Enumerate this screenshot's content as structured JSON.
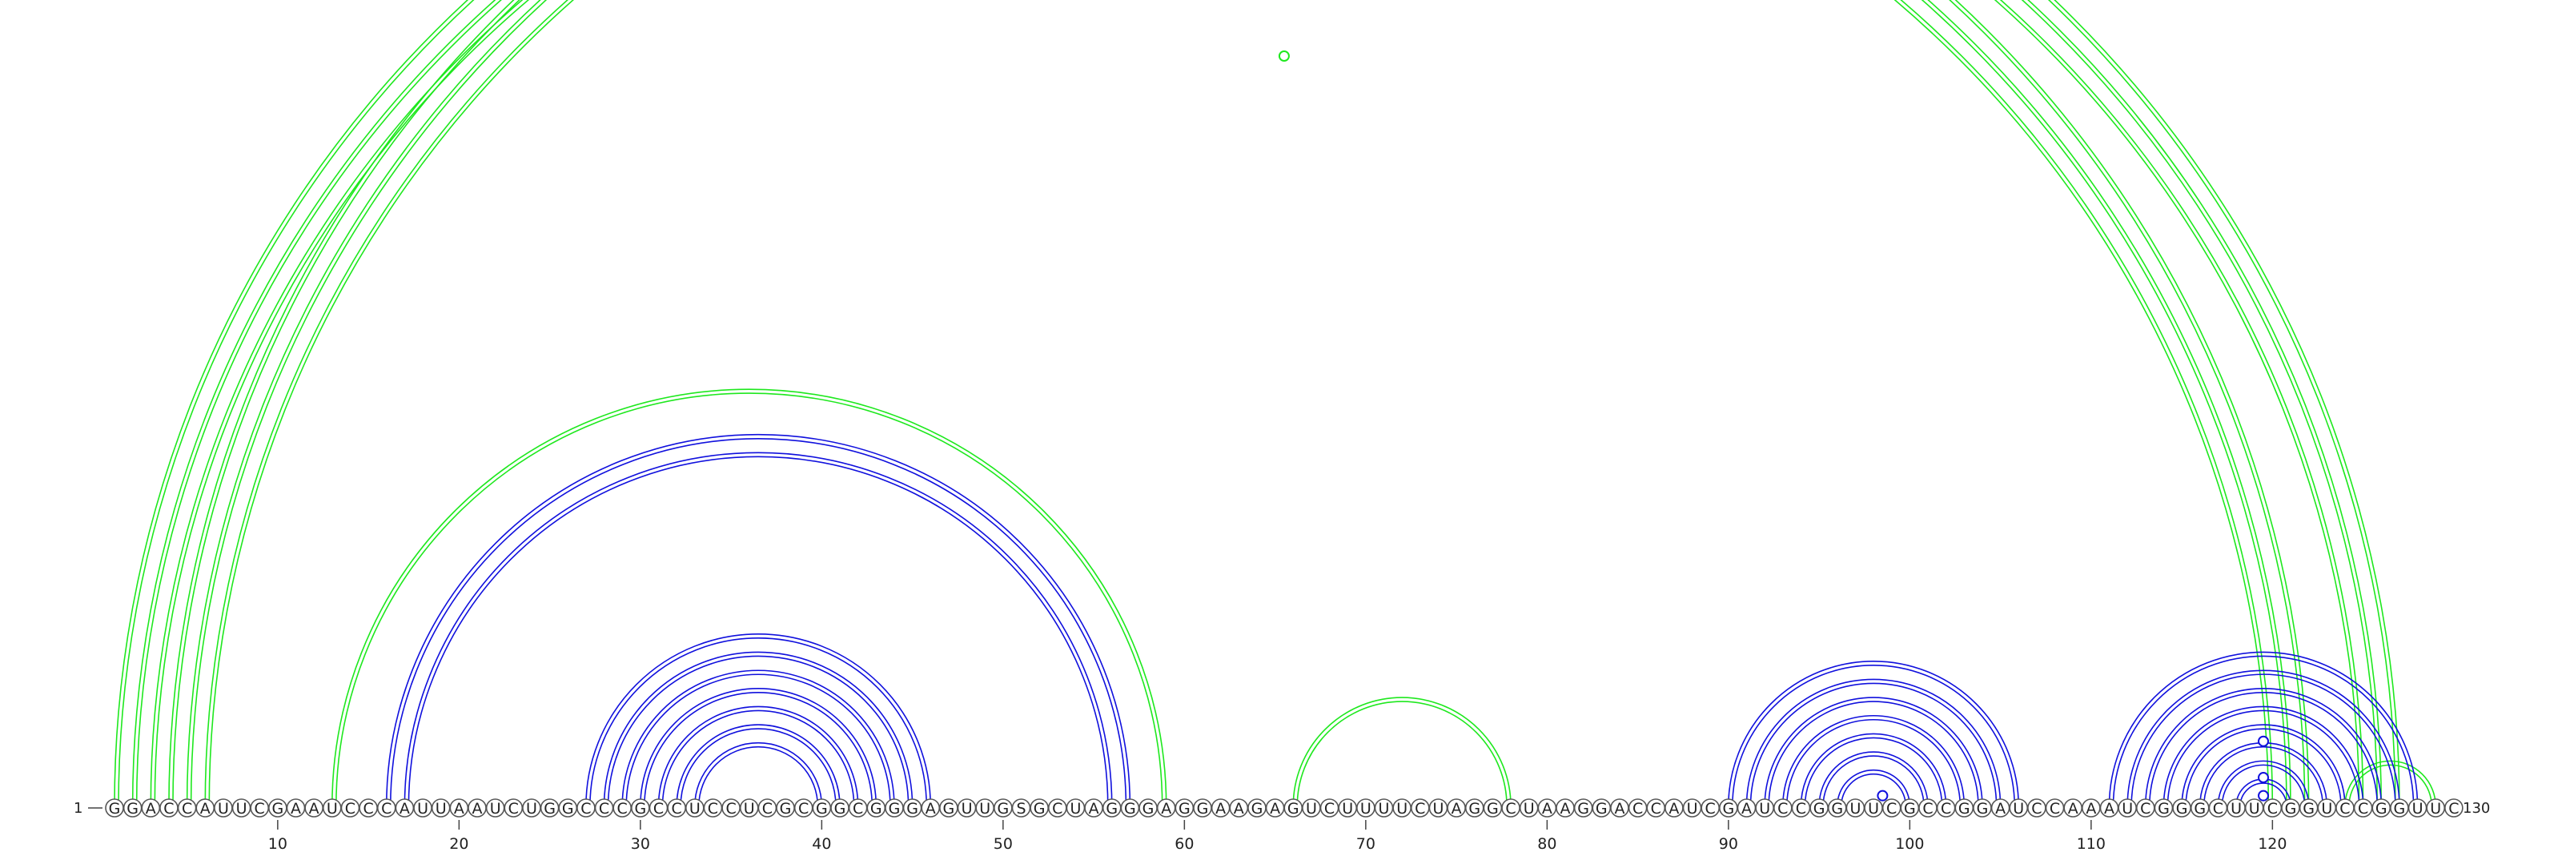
{
  "sequence": "GGACCAUUCGAAUCCCAUUAAUCUGGCCCGCCUCCUCGCGGCGGGAGUUGSGCUAGGGAGGAAGAGUCUUUUCUAGGCUAAGGACCAUCGAUCCGGUUCGCCGGAUCCAAAUCGGGCUUCGGUCCGGUUC",
  "start_label": "1",
  "end_label": "130",
  "ticks": [
    "10",
    "20",
    "30",
    "40",
    "50",
    "60",
    "70",
    "80",
    "90",
    "100",
    "110",
    "120"
  ],
  "colors": {
    "nested_arc": "#1010dd",
    "crossing_arc": "#1ee81e"
  },
  "arc_pairs": {
    "crossing": [
      [
        1,
        122
      ],
      [
        2,
        121
      ],
      [
        3,
        120
      ],
      [
        4,
        127
      ],
      [
        5,
        126
      ],
      [
        6,
        125
      ],
      [
        13,
        59
      ],
      [
        66,
        78
      ],
      [
        124,
        129
      ]
    ],
    "nested": [
      [
        16,
        57
      ],
      [
        17,
        56
      ],
      [
        27,
        46
      ],
      [
        28,
        45
      ],
      [
        29,
        44
      ],
      [
        30,
        43
      ],
      [
        31,
        42
      ],
      [
        32,
        41
      ],
      [
        33,
        40
      ],
      [
        90,
        106
      ],
      [
        91,
        105
      ],
      [
        92,
        104
      ],
      [
        93,
        103
      ],
      [
        94,
        102
      ],
      [
        95,
        101
      ],
      [
        96,
        100
      ],
      [
        111,
        128
      ],
      [
        112,
        127
      ],
      [
        113,
        126
      ],
      [
        114,
        125
      ],
      [
        115,
        124
      ],
      [
        116,
        123
      ],
      [
        117,
        122
      ],
      [
        118,
        121
      ]
    ]
  },
  "markers": [
    {
      "i": 1,
      "j": 130,
      "color": "crossing_arc"
    },
    {
      "i": 98,
      "j": 99,
      "color": "nested_arc"
    },
    {
      "i": 119,
      "j": 120,
      "color": "nested_arc"
    },
    {
      "i": 118,
      "j": 121,
      "color": "nested_arc"
    },
    {
      "i": 116,
      "j": 123,
      "color": "nested_arc"
    }
  ]
}
